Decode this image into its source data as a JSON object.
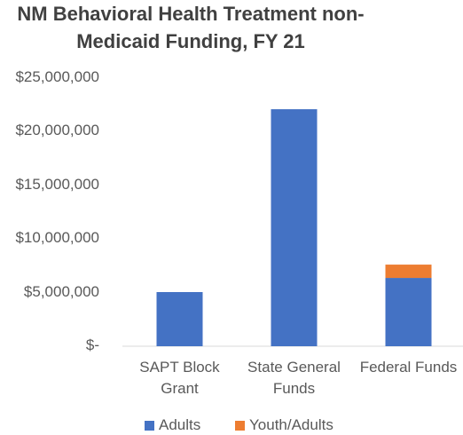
{
  "chart_data": {
    "type": "stacked_bar",
    "title": "NM Behavioral Health Treatment non-Medicaid Funding, FY 21",
    "categories": [
      "SAPT Block Grant",
      "State General Funds",
      "Federal Funds"
    ],
    "series": [
      {
        "name": "Adults",
        "color": "#4472c4",
        "values": [
          5050000,
          22100000,
          6370000
        ]
      },
      {
        "name": "Youth/Adults",
        "color": "#ed7d31",
        "values": [
          0,
          0,
          1240000
        ]
      }
    ],
    "ylim": [
      0,
      25000000
    ],
    "yticks": [
      {
        "value": 0,
        "label": "$-"
      },
      {
        "value": 5000000,
        "label": "$5,000,000"
      },
      {
        "value": 10000000,
        "label": "$10,000,000"
      },
      {
        "value": 15000000,
        "label": "$15,000,000"
      },
      {
        "value": 20000000,
        "label": "$20,000,000"
      },
      {
        "value": 25000000,
        "label": "$25,000,000"
      }
    ],
    "grid": false,
    "legend": "bottom"
  }
}
